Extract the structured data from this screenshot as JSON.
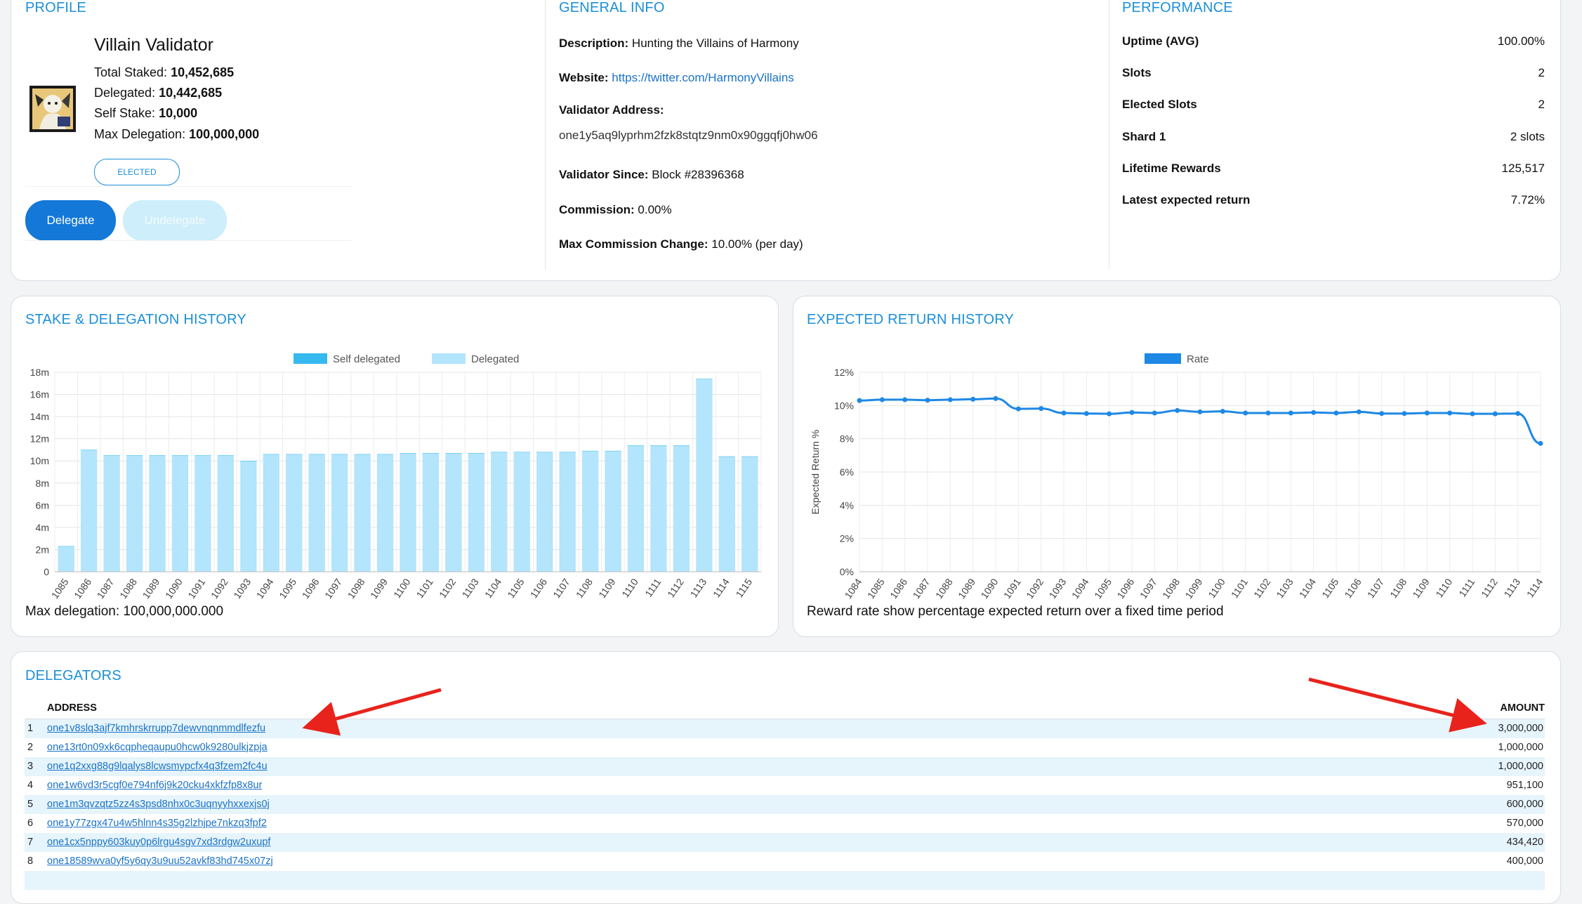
{
  "profile": {
    "section_title": "PROFILE",
    "name": "Villain Validator",
    "total_staked_label": "Total Staked:",
    "total_staked": "10,452,685",
    "delegated_label": "Delegated:",
    "delegated": "10,442,685",
    "self_stake_label": "Self Stake:",
    "self_stake": "10,000",
    "max_delegation_label": "Max Delegation:",
    "max_delegation": "100,000,000",
    "status_badge": "ELECTED",
    "delegate_button": "Delegate",
    "undelegate_button": "Undelegate"
  },
  "general": {
    "section_title": "GENERAL INFO",
    "description_label": "Description:",
    "description": "Hunting the Villains of Harmony",
    "website_label": "Website:",
    "website": "https://twitter.com/HarmonyVillains",
    "validator_address_label": "Validator Address:",
    "validator_address": "one1y5aq9lyprhm2fzk8stqtz9nm0x90ggqfj0hw06",
    "validator_since_label": "Validator Since:",
    "validator_since": "Block #28396368",
    "commission_label": "Commission:",
    "commission": "0.00%",
    "max_commission_change_label": "Max Commission Change:",
    "max_commission_change": "10.00% (per day)"
  },
  "performance": {
    "section_title": "PERFORMANCE",
    "rows": [
      {
        "label": "Uptime (AVG)",
        "value": "100.00%"
      },
      {
        "label": "Slots",
        "value": "2"
      },
      {
        "label": "Elected Slots",
        "value": "2"
      },
      {
        "label": "Shard 1",
        "value": "2 slots"
      },
      {
        "label": "Lifetime Rewards",
        "value": "125,517"
      },
      {
        "label": "Latest expected return",
        "value": "7.72%"
      }
    ]
  },
  "stake_history": {
    "section_title": "STAKE & DELEGATION HISTORY",
    "footer": "Max delegation: 100,000,000.000",
    "chart_data": {
      "type": "bar",
      "stacked": true,
      "categories": [
        "1085",
        "1086",
        "1087",
        "1088",
        "1089",
        "1090",
        "1091",
        "1092",
        "1093",
        "1094",
        "1095",
        "1096",
        "1097",
        "1098",
        "1099",
        "1100",
        "1101",
        "1102",
        "1103",
        "1104",
        "1105",
        "1106",
        "1107",
        "1108",
        "1109",
        "1110",
        "1111",
        "1112",
        "1113",
        "1114",
        "1115"
      ],
      "series": [
        {
          "name": "Self delegated",
          "color": "#36b9ee",
          "values": [
            0.01,
            0.01,
            0.01,
            0.01,
            0.01,
            0.01,
            0.01,
            0.01,
            0.01,
            0.01,
            0.01,
            0.01,
            0.01,
            0.01,
            0.01,
            0.01,
            0.01,
            0.01,
            0.01,
            0.01,
            0.01,
            0.01,
            0.01,
            0.01,
            0.01,
            0.01,
            0.01,
            0.01,
            0.01,
            0.01,
            0.01
          ]
        },
        {
          "name": "Delegated",
          "color": "#b3e5fc",
          "values": [
            2.3,
            11.0,
            10.5,
            10.5,
            10.5,
            10.5,
            10.5,
            10.5,
            10.0,
            10.6,
            10.6,
            10.6,
            10.6,
            10.6,
            10.6,
            10.7,
            10.7,
            10.7,
            10.7,
            10.8,
            10.8,
            10.8,
            10.8,
            10.9,
            10.9,
            11.4,
            11.4,
            11.4,
            17.4,
            10.4,
            10.4
          ]
        }
      ],
      "yticks": [
        "0",
        "2m",
        "4m",
        "6m",
        "8m",
        "10m",
        "12m",
        "14m",
        "16m",
        "18m"
      ],
      "ylim": [
        0,
        18
      ],
      "grid": true,
      "legend_position": "top"
    }
  },
  "return_history": {
    "section_title": "EXPECTED RETURN HISTORY",
    "footer": "Reward rate show percentage expected return over a fixed time period",
    "chart_data": {
      "type": "line",
      "categories": [
        "1084",
        "1085",
        "1086",
        "1087",
        "1088",
        "1089",
        "1090",
        "1091",
        "1092",
        "1093",
        "1094",
        "1095",
        "1096",
        "1097",
        "1098",
        "1099",
        "1100",
        "1101",
        "1102",
        "1103",
        "1104",
        "1105",
        "1106",
        "1107",
        "1108",
        "1109",
        "1110",
        "1111",
        "1112",
        "1113",
        "1114"
      ],
      "series": [
        {
          "name": "Rate",
          "color": "#1e88e5",
          "values": [
            10.3,
            10.35,
            10.35,
            10.32,
            10.35,
            10.38,
            10.42,
            9.8,
            9.82,
            9.55,
            9.52,
            9.5,
            9.58,
            9.55,
            9.7,
            9.62,
            9.65,
            9.55,
            9.55,
            9.55,
            9.58,
            9.55,
            9.62,
            9.52,
            9.52,
            9.55,
            9.55,
            9.5,
            9.5,
            9.52,
            7.72
          ]
        }
      ],
      "yticks": [
        "0%",
        "2%",
        "4%",
        "6%",
        "8%",
        "10%",
        "12%"
      ],
      "ylim": [
        0,
        12
      ],
      "ylabel": "Expected Return %",
      "grid": true,
      "legend_position": "top"
    }
  },
  "delegators": {
    "section_title": "DELEGATORS",
    "col_address": "ADDRESS",
    "col_amount": "AMOUNT",
    "rows": [
      {
        "n": "1",
        "address": "one1v8slq3ajf7kmhrskrrupp7dewvnqnmmdlfezfu",
        "amount": "3,000,000"
      },
      {
        "n": "2",
        "address": "one13rt0n09xk6cqpheqaupu0hcw0k9280ulkjzpja",
        "amount": "1,000,000"
      },
      {
        "n": "3",
        "address": "one1q2xxg88g9lqalys8lcwsmypcfx4q3fzem2fc4u",
        "amount": "1,000,000"
      },
      {
        "n": "4",
        "address": "one1w6vd3r5cgf0e794nf6j9k20cku4xkfzfp8x8ur",
        "amount": "951,100"
      },
      {
        "n": "5",
        "address": "one1m3qvzqtz5zz4s3psd8nhx0c3uqnyyhxxexjs0j",
        "amount": "600,000"
      },
      {
        "n": "6",
        "address": "one1y77zgx47u4w5hlnn4s35g2lzhjpe7nkzq3fpf2",
        "amount": "570,000"
      },
      {
        "n": "7",
        "address": "one1cx5nppy603kuy0p6lrgu4sgv7xd3rdgw2uxupf",
        "amount": "434,420"
      },
      {
        "n": "8",
        "address": "one18589wva0yf5y6qy3u9uu52avkf83hd745x07zj",
        "amount": "400,000"
      }
    ]
  }
}
